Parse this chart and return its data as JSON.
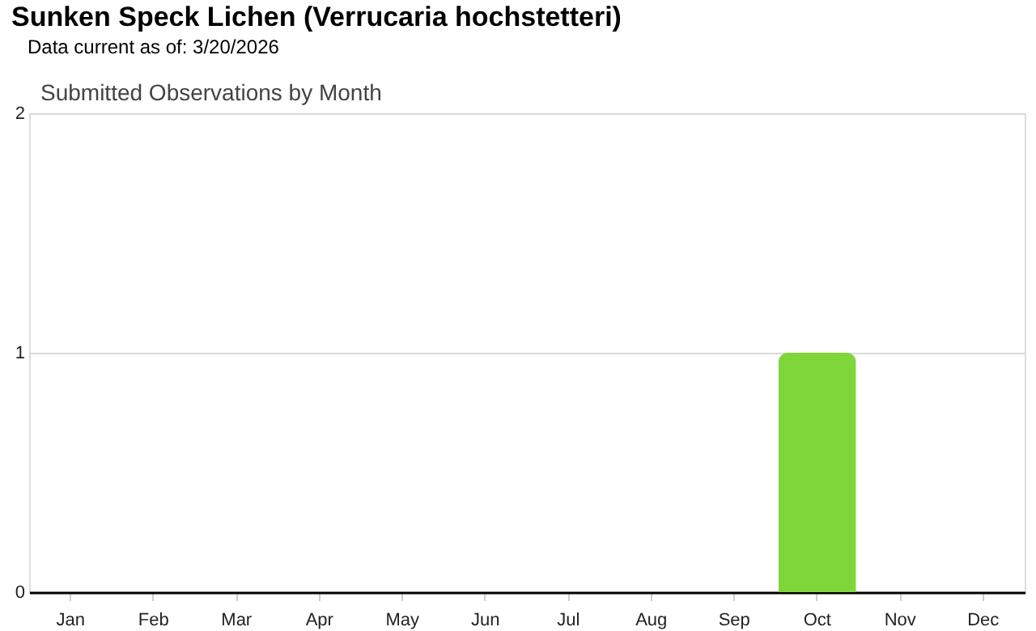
{
  "chart_data": {
    "type": "bar",
    "title": "Sunken Speck Lichen   (Verrucaria hochstetteri)",
    "subtitle": "Data current as of: 3/20/2026",
    "annotations": [
      "Submitted Observations by Month"
    ],
    "categories": [
      "Jan",
      "Feb",
      "Mar",
      "Apr",
      "May",
      "Jun",
      "Jul",
      "Aug",
      "Sep",
      "Oct",
      "Nov",
      "Dec"
    ],
    "values": [
      0,
      0,
      0,
      0,
      0,
      0,
      0,
      0,
      0,
      1,
      0,
      0
    ],
    "color": "#7ed63a",
    "ylim": [
      0,
      2
    ],
    "yticks": [
      0,
      1,
      2
    ],
    "grid": "y"
  }
}
